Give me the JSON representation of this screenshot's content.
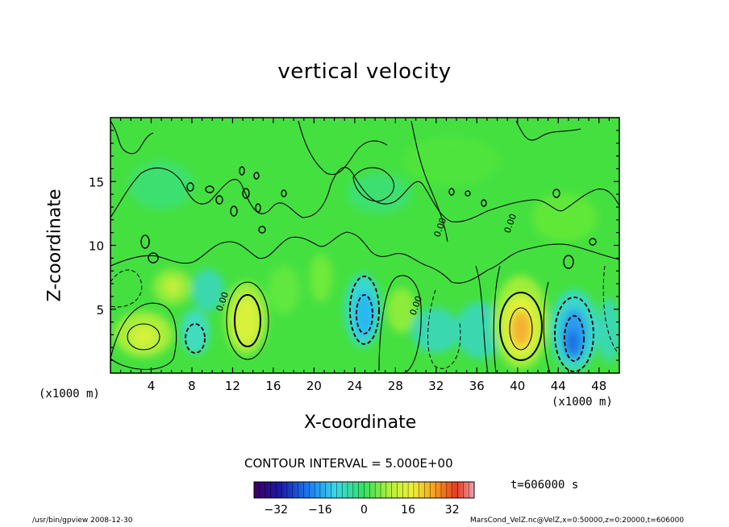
{
  "chart_data": {
    "type": "heatmap",
    "title": "vertical velocity",
    "xlabel": "X-coordinate",
    "ylabel": "Z-coordinate",
    "x_unit_label": "(x1000 m)",
    "xlim": [
      0,
      50
    ],
    "ylim": [
      0,
      20
    ],
    "x_ticks": [
      4,
      8,
      12,
      16,
      20,
      24,
      28,
      32,
      36,
      40,
      44,
      48
    ],
    "y_ticks": [
      5,
      10,
      15
    ],
    "contour_interval_text": "CONTOUR INTERVAL = 5.000E+00",
    "contour_labels": [
      "0.00",
      "0.00",
      "0.00",
      "0.00"
    ],
    "time_text": "t=606000 s",
    "colorbar": {
      "range": [
        -40,
        40
      ],
      "ticks": [
        -32,
        -16,
        0,
        16,
        32
      ],
      "colormap": "rainbow"
    },
    "features": [
      {
        "x": 3,
        "z": 2.7,
        "value": 10
      },
      {
        "x": 6,
        "z": 6.5,
        "value": 8
      },
      {
        "x": 8,
        "z": 2.5,
        "value": -8
      },
      {
        "x": 13.5,
        "z": 4,
        "value": 12
      },
      {
        "x": 25.5,
        "z": 4.8,
        "value": -14
      },
      {
        "x": 40.5,
        "z": 3.5,
        "value": 20
      },
      {
        "x": 45.8,
        "z": 2.5,
        "value": -16
      }
    ]
  },
  "footer": {
    "left": "/usr/bin/gpview   2008-12-30",
    "right": "MarsCond_VelZ.nc@VelZ,x=0:50000,z=0:20000,t=606000"
  }
}
